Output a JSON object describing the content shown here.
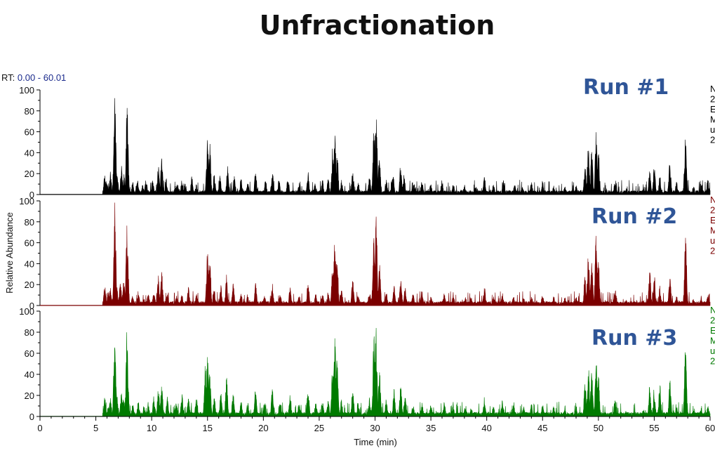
{
  "title": "Unfractionation",
  "rt_range": {
    "prefix": "RT:",
    "value": "0.00 - 60.01"
  },
  "chart_data": {
    "type": "area",
    "title": "Unfractionation",
    "xlabel": "Time (min)",
    "ylabel": "Relative Abundance",
    "xlim": [
      0,
      60
    ],
    "ylim": [
      0,
      100
    ],
    "x_ticks": [
      "0",
      "5",
      "10",
      "15",
      "20",
      "25",
      "30",
      "35",
      "40",
      "45",
      "50",
      "55",
      "60"
    ],
    "y_ticks": [
      "0",
      "20",
      "40",
      "60",
      "80",
      "100"
    ],
    "panels": [
      {
        "name": "Run #1",
        "color": "#000000",
        "side_text": [
          "N",
          "2",
          "E",
          "M",
          "u",
          "2"
        ],
        "onset": 5.6,
        "baseline": 1,
        "peaks": [
          [
            5.8,
            20
          ],
          [
            6.0,
            12
          ],
          [
            6.3,
            22
          ],
          [
            6.7,
            100
          ],
          [
            6.9,
            22
          ],
          [
            7.3,
            28
          ],
          [
            7.5,
            20
          ],
          [
            7.8,
            95
          ],
          [
            8.3,
            12
          ],
          [
            8.7,
            18
          ],
          [
            9.2,
            10
          ],
          [
            9.5,
            15
          ],
          [
            10.1,
            14
          ],
          [
            10.6,
            28
          ],
          [
            10.9,
            35
          ],
          [
            11.3,
            16
          ],
          [
            12.3,
            12
          ],
          [
            12.7,
            14
          ],
          [
            13.0,
            13
          ],
          [
            13.6,
            18
          ],
          [
            14.0,
            11
          ],
          [
            15.0,
            55
          ],
          [
            15.2,
            50
          ],
          [
            15.6,
            20
          ],
          [
            16.1,
            20
          ],
          [
            16.8,
            30
          ],
          [
            17.4,
            18
          ],
          [
            18.0,
            16
          ],
          [
            18.6,
            12
          ],
          [
            19.3,
            24
          ],
          [
            20.2,
            14
          ],
          [
            20.8,
            25
          ],
          [
            21.4,
            16
          ],
          [
            22.2,
            18
          ],
          [
            23.2,
            12
          ],
          [
            24.0,
            24
          ],
          [
            24.6,
            12
          ],
          [
            25.3,
            15
          ],
          [
            25.8,
            16
          ],
          [
            26.2,
            45
          ],
          [
            26.4,
            62
          ],
          [
            26.6,
            45
          ],
          [
            27.0,
            14
          ],
          [
            28.0,
            25
          ],
          [
            28.5,
            12
          ],
          [
            29.5,
            18
          ],
          [
            29.9,
            65
          ],
          [
            30.1,
            84
          ],
          [
            30.4,
            40
          ],
          [
            31.0,
            15
          ],
          [
            31.6,
            22
          ],
          [
            32.3,
            32
          ],
          [
            32.6,
            20
          ],
          [
            33.5,
            12
          ],
          [
            34.2,
            14
          ],
          [
            35.0,
            12
          ],
          [
            36.0,
            13
          ],
          [
            37.0,
            12
          ],
          [
            38.0,
            10
          ],
          [
            39.0,
            8
          ],
          [
            39.8,
            18
          ],
          [
            40.6,
            10
          ],
          [
            41.5,
            14
          ],
          [
            42.5,
            10
          ],
          [
            43.2,
            8
          ],
          [
            44.0,
            12
          ],
          [
            45.0,
            12
          ],
          [
            46.0,
            9
          ],
          [
            47.0,
            8
          ],
          [
            48.0,
            9
          ],
          [
            48.8,
            28
          ],
          [
            49.1,
            50
          ],
          [
            49.4,
            45
          ],
          [
            49.8,
            62
          ],
          [
            50.0,
            45
          ],
          [
            51.5,
            15
          ],
          [
            52.5,
            6
          ],
          [
            54.0,
            6
          ],
          [
            54.6,
            26
          ],
          [
            55.0,
            28
          ],
          [
            55.5,
            18
          ],
          [
            56.4,
            35
          ],
          [
            57.0,
            12
          ],
          [
            57.8,
            67
          ],
          [
            58.5,
            8
          ],
          [
            59.2,
            12
          ],
          [
            59.8,
            15
          ]
        ]
      },
      {
        "name": "Run #2",
        "color": "#7b0000",
        "side_text": [
          "N",
          "2",
          "E",
          "M",
          "u",
          "2"
        ],
        "onset": 5.6,
        "baseline": 1,
        "peaks": [
          [
            5.8,
            20
          ],
          [
            6.1,
            15
          ],
          [
            6.3,
            18
          ],
          [
            6.7,
            100
          ],
          [
            6.9,
            20
          ],
          [
            7.2,
            22
          ],
          [
            7.5,
            25
          ],
          [
            7.8,
            85
          ],
          [
            8.3,
            10
          ],
          [
            8.8,
            14
          ],
          [
            9.3,
            8
          ],
          [
            9.7,
            12
          ],
          [
            10.2,
            15
          ],
          [
            10.6,
            30
          ],
          [
            10.9,
            35
          ],
          [
            11.4,
            14
          ],
          [
            12.2,
            10
          ],
          [
            12.7,
            11
          ],
          [
            13.3,
            18
          ],
          [
            14.0,
            11
          ],
          [
            15.0,
            58
          ],
          [
            15.2,
            50
          ],
          [
            15.6,
            15
          ],
          [
            16.2,
            20
          ],
          [
            16.7,
            30
          ],
          [
            17.3,
            22
          ],
          [
            18.0,
            14
          ],
          [
            18.6,
            10
          ],
          [
            19.3,
            22
          ],
          [
            20.1,
            12
          ],
          [
            20.8,
            22
          ],
          [
            21.5,
            12
          ],
          [
            22.4,
            20
          ],
          [
            23.2,
            10
          ],
          [
            24.0,
            24
          ],
          [
            24.7,
            12
          ],
          [
            25.3,
            12
          ],
          [
            25.8,
            15
          ],
          [
            26.2,
            40
          ],
          [
            26.4,
            68
          ],
          [
            26.6,
            50
          ],
          [
            27.0,
            15
          ],
          [
            28.0,
            28
          ],
          [
            28.5,
            12
          ],
          [
            29.5,
            15
          ],
          [
            29.9,
            70
          ],
          [
            30.1,
            88
          ],
          [
            30.4,
            45
          ],
          [
            31.0,
            14
          ],
          [
            31.7,
            20
          ],
          [
            32.3,
            28
          ],
          [
            32.7,
            18
          ],
          [
            33.4,
            12
          ],
          [
            34.2,
            15
          ],
          [
            35.0,
            10
          ],
          [
            36.2,
            12
          ],
          [
            37.0,
            10
          ],
          [
            38.1,
            8
          ],
          [
            38.6,
            9
          ],
          [
            39.8,
            18
          ],
          [
            40.6,
            9
          ],
          [
            41.4,
            12
          ],
          [
            42.4,
            10
          ],
          [
            43.3,
            8
          ],
          [
            44.0,
            10
          ],
          [
            45.0,
            10
          ],
          [
            46.0,
            9
          ],
          [
            47.0,
            8
          ],
          [
            48.0,
            9
          ],
          [
            48.8,
            30
          ],
          [
            49.1,
            52
          ],
          [
            49.4,
            50
          ],
          [
            49.8,
            72
          ],
          [
            50.0,
            48
          ],
          [
            51.5,
            18
          ],
          [
            52.5,
            6
          ],
          [
            54.0,
            6
          ],
          [
            54.6,
            35
          ],
          [
            55.0,
            30
          ],
          [
            55.5,
            20
          ],
          [
            56.4,
            28
          ],
          [
            57.0,
            10
          ],
          [
            57.8,
            72
          ],
          [
            58.5,
            7
          ],
          [
            59.2,
            8
          ],
          [
            59.8,
            10
          ]
        ]
      },
      {
        "name": "Run #3",
        "color": "#007a00",
        "side_text": [
          "N",
          "2",
          "E",
          "M",
          "u",
          "2"
        ],
        "onset": 5.6,
        "baseline": 1,
        "peaks": [
          [
            5.8,
            20
          ],
          [
            6.1,
            12
          ],
          [
            6.3,
            18
          ],
          [
            6.7,
            100
          ],
          [
            6.9,
            20
          ],
          [
            7.3,
            26
          ],
          [
            7.5,
            20
          ],
          [
            7.8,
            90
          ],
          [
            8.3,
            12
          ],
          [
            8.8,
            14
          ],
          [
            9.3,
            10
          ],
          [
            9.7,
            12
          ],
          [
            10.2,
            20
          ],
          [
            10.6,
            28
          ],
          [
            10.9,
            32
          ],
          [
            11.4,
            20
          ],
          [
            12.2,
            15
          ],
          [
            12.7,
            24
          ],
          [
            13.3,
            20
          ],
          [
            14.0,
            18
          ],
          [
            14.8,
            50
          ],
          [
            15.0,
            66
          ],
          [
            15.2,
            45
          ],
          [
            15.6,
            20
          ],
          [
            16.2,
            25
          ],
          [
            16.7,
            38
          ],
          [
            17.3,
            22
          ],
          [
            18.0,
            16
          ],
          [
            18.6,
            14
          ],
          [
            19.3,
            28
          ],
          [
            20.1,
            14
          ],
          [
            20.8,
            28
          ],
          [
            21.5,
            15
          ],
          [
            22.4,
            22
          ],
          [
            23.2,
            14
          ],
          [
            24.0,
            32
          ],
          [
            24.7,
            14
          ],
          [
            25.3,
            14
          ],
          [
            25.8,
            16
          ],
          [
            26.2,
            50
          ],
          [
            26.4,
            78
          ],
          [
            26.6,
            55
          ],
          [
            27.0,
            18
          ],
          [
            28.0,
            30
          ],
          [
            28.5,
            14
          ],
          [
            29.5,
            18
          ],
          [
            29.9,
            80
          ],
          [
            30.1,
            94
          ],
          [
            30.4,
            45
          ],
          [
            31.0,
            18
          ],
          [
            31.7,
            28
          ],
          [
            32.3,
            30
          ],
          [
            32.7,
            20
          ],
          [
            33.4,
            12
          ],
          [
            34.2,
            14
          ],
          [
            35.0,
            12
          ],
          [
            36.2,
            14
          ],
          [
            37.0,
            12
          ],
          [
            38.1,
            12
          ],
          [
            38.6,
            10
          ],
          [
            39.8,
            20
          ],
          [
            40.6,
            10
          ],
          [
            41.4,
            16
          ],
          [
            42.4,
            12
          ],
          [
            43.3,
            10
          ],
          [
            44.0,
            12
          ],
          [
            45.0,
            12
          ],
          [
            46.0,
            10
          ],
          [
            47.0,
            8
          ],
          [
            48.0,
            10
          ],
          [
            48.8,
            35
          ],
          [
            49.1,
            50
          ],
          [
            49.4,
            48
          ],
          [
            49.8,
            55
          ],
          [
            50.0,
            40
          ],
          [
            51.5,
            20
          ],
          [
            52.5,
            6
          ],
          [
            54.0,
            6
          ],
          [
            54.6,
            32
          ],
          [
            55.0,
            28
          ],
          [
            55.5,
            32
          ],
          [
            56.4,
            35
          ],
          [
            57.0,
            10
          ],
          [
            57.8,
            73
          ],
          [
            58.5,
            6
          ],
          [
            59.2,
            8
          ],
          [
            59.8,
            10
          ]
        ]
      }
    ]
  }
}
